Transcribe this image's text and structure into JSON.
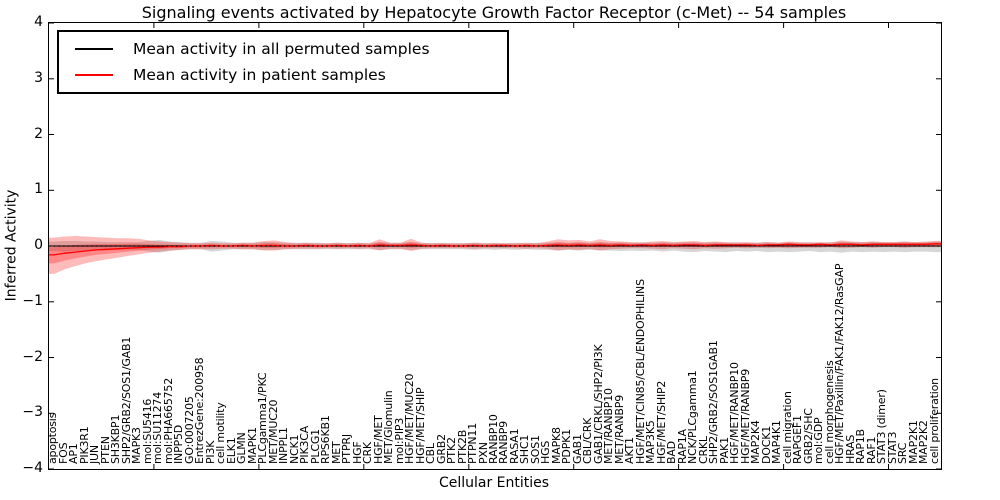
{
  "figure": {
    "title": "Signaling events activated by Hepatocyte Growth Factor Receptor (c-Met) -- 54 samples",
    "xlabel": "Cellular Entities",
    "ylabel": "Inferred Activity",
    "legend": [
      {
        "label": "Mean activity in all permuted samples",
        "color": "#000000"
      },
      {
        "label": "Mean activity in patient samples",
        "color": "#ff0000"
      }
    ]
  },
  "chart_data": {
    "type": "line",
    "title": "Signaling events activated by Hepatocyte Growth Factor Receptor (c-Met) -- 54 samples",
    "xlabel": "Cellular Entities",
    "ylabel": "Inferred Activity",
    "ylim": [
      -4,
      4
    ],
    "yticks": [
      4,
      3,
      2,
      1,
      0,
      -1,
      -2,
      -3,
      -4
    ],
    "xticks": [
      10,
      20,
      30,
      40,
      50,
      60,
      70,
      80
    ],
    "grid": false,
    "legend_position": "upper left",
    "zero_line": {
      "style": "dotted",
      "color": "#000000"
    },
    "categories": [
      "apoptosis",
      "FOS",
      "AP1",
      "PIK3R1",
      "JUN",
      "PTEN",
      "SH3KBP1",
      "SHP2/GRB2/SOS1/GAB1",
      "MAPK3",
      "mol:SU5416",
      "mol:SU11274",
      "mol:PHA665752",
      "INPP5D",
      "GO:0007205",
      "EntrezGene:200958",
      "PI3K",
      "cell motility",
      "ELK1",
      "GLMN",
      "MAPK1",
      "PLCgamma1/PKC",
      "MET/MUC20",
      "INPPL1",
      "NCK1",
      "PIK3CA",
      "PLCG1",
      "RPS6KB1",
      "MET",
      "PTPRJ",
      "HGF",
      "CRK",
      "HGF/MET",
      "MET/Glomulin",
      "mol:PIP3",
      "HGF/MET/MUC20",
      "HGF/MET/SHIP",
      "CBL",
      "GRB2",
      "PTK2",
      "PTK2B",
      "PTPN11",
      "PXN",
      "RANBP10",
      "RANBP9",
      "RASA1",
      "SHC1",
      "SOS1",
      "HGS",
      "MAPK8",
      "PDPK1",
      "GAB1",
      "CBL/CRK",
      "GAB1/CRKL/SHP2/PI3K",
      "MET/RANBP10",
      "MET/RANBP9",
      "AKT1",
      "HGF/MET/CIN85/CBL/ENDOPHILINS",
      "MAP3K5",
      "HGF/MET/SHIP2",
      "BAD",
      "RAP1A",
      "NCK/PLCgamma1",
      "CRKL",
      "SHP2/GRB2/SOS1GAB1",
      "PAK1",
      "HGF/MET/RANBP10",
      "HGF/MET/RANBP9",
      "MAP2K4",
      "DOCK1",
      "MAP4K1",
      "cell migration",
      "RAPGEF1",
      "GRB2/SHC",
      "mol:GDP",
      "cell morphogenesis",
      "HGF/MET/Paxillin/FAK1/FAK12/RasGAP",
      "HRAS",
      "RAP1B",
      "RAF1",
      "STAT3 (dimer)",
      "STAT3",
      "SRC",
      "MAP2K1",
      "MAP2K2",
      "cell proliferation"
    ],
    "series": [
      {
        "name": "Mean activity in all permuted samples",
        "color": "#000000",
        "band_color": "#000000",
        "band_opacity": 0.16,
        "values": [
          0,
          0,
          0,
          0,
          0,
          0,
          0,
          0,
          0,
          0,
          0,
          0,
          0,
          0,
          0,
          0,
          0,
          0,
          0,
          0,
          0,
          0,
          0,
          0,
          0,
          0,
          0,
          0,
          0,
          0,
          0,
          0,
          0,
          0,
          0,
          0,
          0,
          0,
          0,
          0,
          0,
          0,
          0,
          0,
          0,
          0,
          0,
          0,
          0,
          0,
          0,
          0,
          0,
          0,
          0,
          0,
          0,
          0,
          0,
          0,
          0,
          0,
          0,
          0,
          0,
          0,
          0,
          0,
          0,
          0,
          0,
          0,
          0,
          0,
          0,
          0,
          0,
          0,
          0,
          0,
          0,
          0,
          0,
          0,
          0
        ],
        "band_upper": [
          0.08,
          0.09,
          0.09,
          0.08,
          0.08,
          0.07,
          0.07,
          0.07,
          0.07,
          0.09,
          0.11,
          0.08,
          0.07,
          0.06,
          0.06,
          0.09,
          0.08,
          0.06,
          0.06,
          0.06,
          0.07,
          0.07,
          0.06,
          0.06,
          0.06,
          0.06,
          0.05,
          0.06,
          0.05,
          0.06,
          0.05,
          0.07,
          0.06,
          0.06,
          0.07,
          0.06,
          0.05,
          0.06,
          0.05,
          0.05,
          0.06,
          0.05,
          0.06,
          0.05,
          0.06,
          0.05,
          0.06,
          0.06,
          0.07,
          0.06,
          0.07,
          0.06,
          0.07,
          0.06,
          0.07,
          0.06,
          0.07,
          0.06,
          0.07,
          0.06,
          0.07,
          0.07,
          0.06,
          0.07,
          0.06,
          0.07,
          0.06,
          0.06,
          0.07,
          0.06,
          0.07,
          0.06,
          0.07,
          0.06,
          0.07,
          0.08,
          0.07,
          0.07,
          0.08,
          0.07,
          0.07,
          0.08,
          0.07,
          0.07,
          0.08
        ],
        "band_lower": [
          -0.09,
          -0.1,
          -0.09,
          -0.09,
          -0.08,
          -0.08,
          -0.07,
          -0.07,
          -0.07,
          -0.1,
          -0.12,
          -0.09,
          -0.07,
          -0.06,
          -0.06,
          -0.1,
          -0.08,
          -0.06,
          -0.06,
          -0.06,
          -0.07,
          -0.07,
          -0.06,
          -0.06,
          -0.06,
          -0.06,
          -0.06,
          -0.06,
          -0.06,
          -0.06,
          -0.06,
          -0.07,
          -0.06,
          -0.06,
          -0.07,
          -0.06,
          -0.06,
          -0.06,
          -0.06,
          -0.06,
          -0.07,
          -0.06,
          -0.07,
          -0.06,
          -0.07,
          -0.06,
          -0.07,
          -0.07,
          -0.08,
          -0.07,
          -0.08,
          -0.07,
          -0.08,
          -0.08,
          -0.09,
          -0.08,
          -0.09,
          -0.08,
          -0.1,
          -0.08,
          -0.1,
          -0.11,
          -0.09,
          -0.1,
          -0.11,
          -0.09,
          -0.1,
          -0.09,
          -0.11,
          -0.1,
          -0.11,
          -0.1,
          -0.09,
          -0.11,
          -0.1,
          -0.12,
          -0.1,
          -0.11,
          -0.1,
          -0.11,
          -0.1,
          -0.11,
          -0.1,
          -0.1,
          -0.11
        ]
      },
      {
        "name": "Mean activity in patient samples",
        "color": "#ff0000",
        "band_color": "#ff0000",
        "band_opacity": 0.27,
        "values": [
          -0.16,
          -0.13,
          -0.11,
          -0.09,
          -0.07,
          -0.06,
          -0.05,
          -0.04,
          -0.03,
          -0.02,
          -0.02,
          -0.01,
          -0.01,
          0,
          0,
          0.01,
          0,
          0,
          0.01,
          0,
          0.01,
          0.01,
          0,
          0,
          0.01,
          0,
          0,
          0.01,
          0,
          0.01,
          0,
          0.02,
          0.01,
          0.01,
          0.02,
          0.01,
          0,
          0.01,
          0,
          0,
          0.01,
          0,
          0.01,
          0.01,
          0,
          0.01,
          0,
          0.01,
          0.02,
          0.01,
          0.02,
          0.01,
          0.02,
          0.01,
          0.02,
          0.01,
          0.02,
          0.01,
          0.02,
          0.01,
          0.02,
          0.02,
          0.01,
          0.02,
          0.02,
          0.02,
          0.02,
          0.01,
          0.02,
          0.02,
          0.03,
          0.02,
          0.02,
          0.03,
          0.02,
          0.03,
          0.03,
          0.02,
          0.03,
          0.03,
          0.03,
          0.03,
          0.03,
          0.03,
          0.04
        ],
        "band_upper": [
          0.15,
          0.17,
          0.18,
          0.17,
          0.16,
          0.15,
          0.14,
          0.14,
          0.13,
          0.1,
          0.08,
          0.07,
          0.06,
          0.05,
          0.05,
          0.06,
          0.05,
          0.05,
          0.06,
          0.06,
          0.09,
          0.1,
          0.07,
          0.05,
          0.06,
          0.05,
          0.05,
          0.06,
          0.05,
          0.06,
          0.05,
          0.12,
          0.06,
          0.06,
          0.13,
          0.06,
          0.05,
          0.05,
          0.05,
          0.05,
          0.06,
          0.05,
          0.05,
          0.05,
          0.05,
          0.06,
          0.05,
          0.08,
          0.12,
          0.1,
          0.11,
          0.08,
          0.12,
          0.09,
          0.08,
          0.07,
          0.06,
          0.08,
          0.09,
          0.07,
          0.08,
          0.09,
          0.07,
          0.08,
          0.07,
          0.06,
          0.07,
          0.06,
          0.07,
          0.06,
          0.08,
          0.07,
          0.06,
          0.07,
          0.06,
          0.1,
          0.08,
          0.07,
          0.08,
          0.07,
          0.07,
          0.08,
          0.07,
          0.08,
          0.09
        ],
        "band_lower": [
          -0.5,
          -0.42,
          -0.36,
          -0.31,
          -0.27,
          -0.24,
          -0.21,
          -0.18,
          -0.15,
          -0.12,
          -0.1,
          -0.08,
          -0.07,
          -0.06,
          -0.06,
          -0.06,
          -0.05,
          -0.05,
          -0.06,
          -0.06,
          -0.08,
          -0.08,
          -0.06,
          -0.05,
          -0.05,
          -0.05,
          -0.04,
          -0.05,
          -0.04,
          -0.05,
          -0.04,
          -0.08,
          -0.05,
          -0.05,
          -0.09,
          -0.05,
          -0.04,
          -0.04,
          -0.04,
          -0.04,
          -0.05,
          -0.04,
          -0.04,
          -0.04,
          -0.04,
          -0.05,
          -0.04,
          -0.05,
          -0.08,
          -0.06,
          -0.07,
          -0.05,
          -0.08,
          -0.06,
          -0.05,
          -0.04,
          -0.04,
          -0.05,
          -0.06,
          -0.04,
          -0.05,
          -0.06,
          -0.04,
          -0.05,
          -0.04,
          -0.03,
          -0.04,
          -0.03,
          -0.04,
          -0.03,
          -0.04,
          -0.03,
          -0.03,
          -0.03,
          -0.02,
          -0.04,
          -0.03,
          -0.02,
          -0.03,
          -0.02,
          -0.02,
          -0.03,
          -0.02,
          -0.02,
          -0.02
        ]
      }
    ]
  }
}
